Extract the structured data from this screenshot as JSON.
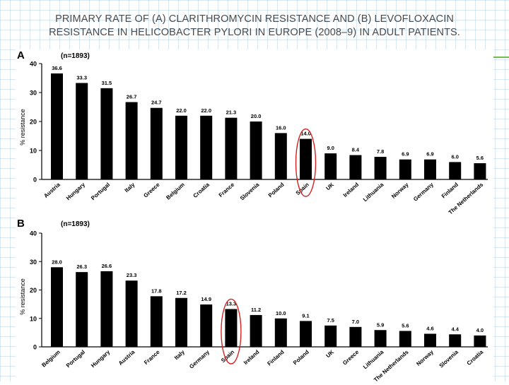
{
  "slide": {
    "title": "PRIMARY RATE OF (A) CLARITHROMYCIN RESISTANCE AND (B) LEVOFLOXACIN RESISTANCE IN HELICOBACTER PYLORI IN EUROPE (2008–9) IN ADULT PATIENTS."
  },
  "colors": {
    "bar": "#000000",
    "highlight": "#d42020",
    "accent_line": "#6fbf4a"
  },
  "chart_data": [
    {
      "type": "bar",
      "panel_label": "A",
      "note": "(n=1893)",
      "ylabel": "% resistance",
      "ylim": [
        0,
        40
      ],
      "yticks": [
        0,
        10,
        20,
        30,
        40
      ],
      "highlighted_category": "Spain",
      "categories": [
        "Austria",
        "Hungary",
        "Portugal",
        "Italy",
        "Greece",
        "Belgium",
        "Croatia",
        "France",
        "Slovenia",
        "Poland",
        "Spain",
        "UK",
        "Ireland",
        "Lithuania",
        "Norway",
        "Germany",
        "Finland",
        "The Netherlands"
      ],
      "values": [
        36.6,
        33.3,
        31.5,
        26.7,
        24.7,
        22.0,
        22.0,
        21.3,
        20.0,
        16.0,
        14.0,
        9.0,
        8.4,
        7.8,
        6.9,
        6.9,
        6.0,
        5.6
      ],
      "value_labels": [
        "36.6",
        "33.3",
        "31.5",
        "26.7",
        "24.7",
        "22.0",
        "22.0",
        "21.3",
        "20.0",
        "16.0",
        "14.0",
        "9.0",
        "8.4",
        "7.8",
        "6.9",
        "6.9",
        "6.0",
        "5.6"
      ]
    },
    {
      "type": "bar",
      "panel_label": "B",
      "note": "(n=1893)",
      "ylabel": "% resistance",
      "ylim": [
        0,
        40
      ],
      "yticks": [
        0,
        10,
        20,
        30,
        40
      ],
      "highlighted_category": "Spain",
      "categories": [
        "Belgium",
        "Portugal",
        "Hungary",
        "Austria",
        "France",
        "Italy",
        "Germany",
        "Spain",
        "Ireland",
        "Finland",
        "Poland",
        "UK",
        "Greece",
        "Lithuania",
        "The Netherlands",
        "Norway",
        "Slovenia",
        "Croatia"
      ],
      "values": [
        28.0,
        26.3,
        26.6,
        23.3,
        17.8,
        17.2,
        14.9,
        13.3,
        11.2,
        10.0,
        9.1,
        7.5,
        7.0,
        5.9,
        5.6,
        4.6,
        4.4,
        4.0
      ],
      "value_labels": [
        "28.0",
        "26.3",
        "26.6",
        "23.3",
        "17.8",
        "17.2",
        "14.9",
        "13.3",
        "11.2",
        "10.0",
        "9.1",
        "7.5",
        "7.0",
        "5.9",
        "5.6",
        "4.6",
        "4.4",
        "4.0"
      ]
    }
  ]
}
